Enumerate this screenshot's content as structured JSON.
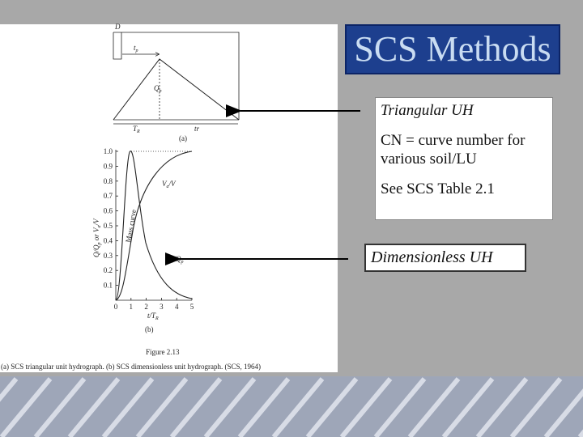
{
  "title": "SCS Methods",
  "notes": {
    "triangular": "Triangular UH",
    "cn": "CN = curve number for various soil/LU",
    "table": "See SCS Table 2.1",
    "dimensionless": "Dimensionless UH"
  },
  "figure": {
    "a": {
      "d": "D",
      "tp": [
        "t",
        "p"
      ],
      "qp": [
        "Q",
        "p"
      ],
      "tr_left": [
        "T",
        "R"
      ],
      "tr_right": "tr",
      "panel": "(a)"
    },
    "b": {
      "yticks": [
        "0.1",
        "0.2",
        "0.3",
        "0.4",
        "0.5",
        "0.6",
        "0.7",
        "0.8",
        "0.9",
        "1.0"
      ],
      "xticks": [
        "0",
        "1",
        "2",
        "3",
        "4",
        "5"
      ],
      "ylabel": [
        "Q/Q",
        "p",
        " or V",
        "a",
        "/V"
      ],
      "xlabel": [
        "t/T",
        "R"
      ],
      "mass_label": [
        "V",
        "a",
        "/V"
      ],
      "mass_curve": "Mass curve",
      "uh_label": [
        "Q/Q",
        "p"
      ],
      "panel": "(b)"
    },
    "number": "Figure 2.13",
    "caption": "(a) SCS triangular unit hydrograph. (b) SCS dimensionless unit hydrograph. (SCS, 1964)"
  }
}
